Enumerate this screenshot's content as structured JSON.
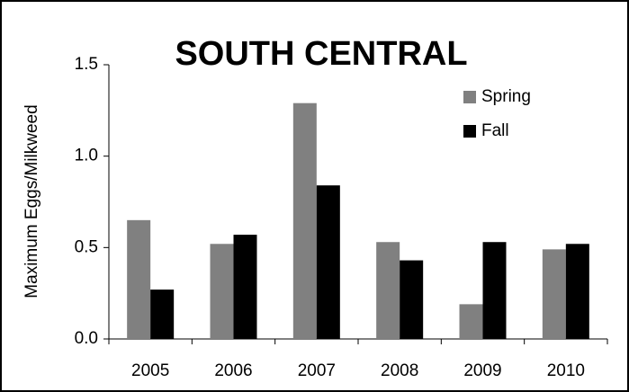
{
  "chart_data": {
    "type": "bar",
    "title": "SOUTH CENTRAL",
    "y_label": "Maximum Eggs/Milkweed",
    "categories": [
      "2005",
      "2006",
      "2007",
      "2008",
      "2009",
      "2010"
    ],
    "series": [
      {
        "name": "Spring",
        "color": "#808080",
        "values": [
          0.65,
          0.52,
          1.29,
          0.53,
          0.19,
          0.49
        ]
      },
      {
        "name": "Fall",
        "color": "#000000",
        "values": [
          0.27,
          0.57,
          0.84,
          0.43,
          0.53,
          0.52
        ]
      }
    ],
    "ylim": [
      0,
      1.5
    ],
    "yticks": [
      {
        "value": 0,
        "label": "0.0"
      },
      0.5,
      {
        "value": 1,
        "label": "1.0"
      },
      1.5
    ],
    "legend": "upper right",
    "grid": false
  }
}
